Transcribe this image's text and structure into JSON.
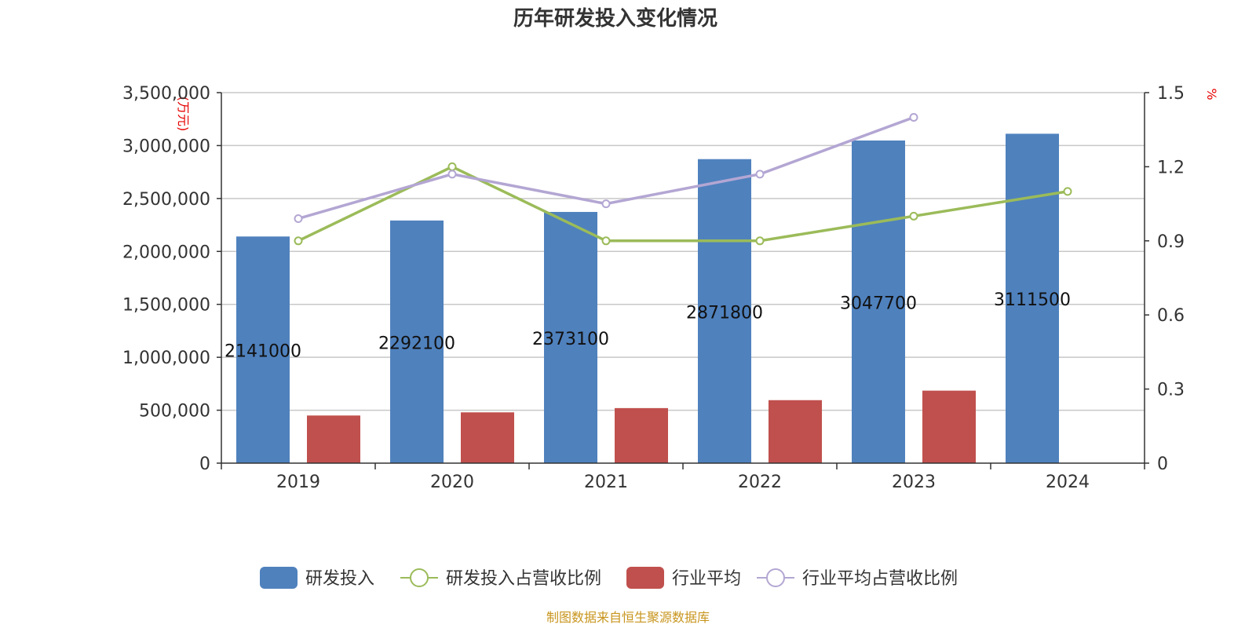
{
  "chart_data": {
    "type": "bar",
    "title": "历年研发投入变化情况",
    "categories": [
      "2019",
      "2020",
      "2021",
      "2022",
      "2023",
      "2024"
    ],
    "y_left": {
      "unit": "(万元)",
      "ylim": [
        0,
        3500000
      ],
      "ticks": [
        "0",
        "500,000",
        "1,000,000",
        "1,500,000",
        "2,000,000",
        "2,500,000",
        "3,000,000",
        "3,500,000"
      ]
    },
    "y_right": {
      "unit": "%",
      "ylim": [
        0,
        1.5
      ],
      "ticks": [
        "0",
        "0.3",
        "0.6",
        "0.9",
        "1.2",
        "1.5"
      ]
    },
    "series": [
      {
        "name": "研发投入",
        "kind": "bar",
        "axis": "left",
        "color": "#4f81bd",
        "values": [
          2141000,
          2292100,
          2373100,
          2871800,
          3047700,
          3111500
        ],
        "labels": [
          "2141000",
          "2292100",
          "2373100",
          "2871800",
          "3047700",
          "3111500"
        ]
      },
      {
        "name": "研发投入占营收比例",
        "kind": "line",
        "axis": "right",
        "color": "#9bbb59",
        "values": [
          0.9,
          1.2,
          0.9,
          0.9,
          1.0,
          1.1
        ]
      },
      {
        "name": "行业平均",
        "kind": "bar",
        "axis": "left",
        "color": "#c0504d",
        "values": [
          450000,
          480000,
          520000,
          595000,
          685000,
          null
        ]
      },
      {
        "name": "行业平均占营收比例",
        "kind": "line",
        "axis": "right",
        "color": "#b3a6d3",
        "values": [
          0.99,
          1.17,
          1.05,
          1.17,
          1.4,
          null
        ]
      }
    ],
    "legend_position": "bottom",
    "grid": true,
    "unit_color": "#e60000"
  },
  "source_text": "制图数据来自恒生聚源数据库",
  "source_color": "#c8951e"
}
